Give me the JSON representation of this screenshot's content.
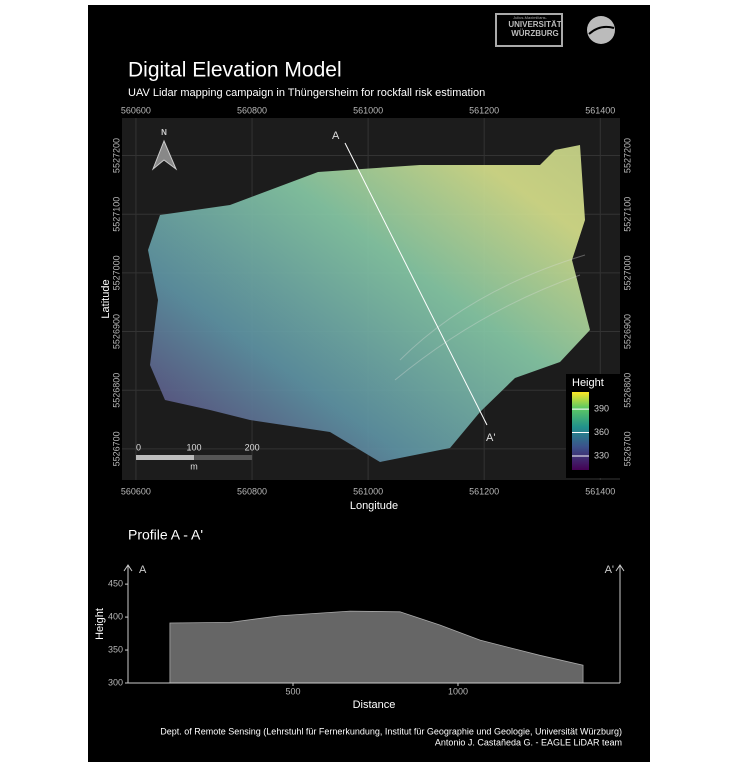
{
  "logos": {
    "university_small": "Julius-Maximilians-",
    "university": "UNIVERSITÄT WÜRZBURG"
  },
  "map": {
    "title": "Digital Elevation Model",
    "subtitle": "UAV Lidar mapping campaign in Thüngersheim for rockfall risk estimation",
    "xlabel": "Longitude",
    "ylabel": "Latitude",
    "xlim": [
      560576,
      561434
    ],
    "ylim": [
      5526647,
      5527264
    ],
    "xticks": [
      560600,
      560800,
      561000,
      561200,
      561400
    ],
    "yticks": [
      5526700,
      5526800,
      5526900,
      5527000,
      5527100,
      5527200
    ],
    "north": "N",
    "profile_start": "A",
    "profile_end": "A'",
    "scalebar": {
      "ticks": [
        0,
        100,
        200
      ],
      "unit": "m"
    },
    "legend": {
      "title": "Height",
      "lim": [
        312,
        412
      ],
      "ticks": [
        330,
        360,
        390
      ]
    }
  },
  "profile": {
    "type": "area",
    "title": "Profile A - A'",
    "xlabel": "Distance",
    "ylabel": "Height",
    "start": "A",
    "end": "A'",
    "xlim": [
      0,
      1491
    ],
    "ylim": [
      300,
      479
    ],
    "xticks": [
      500,
      1000
    ],
    "yticks": [
      300,
      350,
      400,
      450
    ],
    "x": [
      127,
      309,
      461,
      673,
      824,
      945,
      1067,
      1248,
      1379
    ],
    "values": [
      391,
      392,
      402,
      409,
      408,
      388,
      365,
      342,
      327
    ],
    "color": "#666666"
  },
  "footer": [
    "Dept. of Remote Sensing (Lehrstuhl für Fernerkundung, Institut für Geographie und Geologie, Universität Würzburg)",
    "Antonio J. Castañeda G. - EAGLE LiDAR team"
  ]
}
